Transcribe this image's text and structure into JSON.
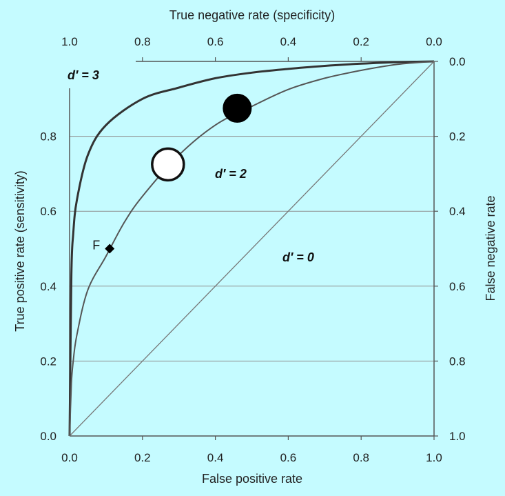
{
  "chart_data": {
    "type": "line",
    "background_color": "#c5fbff",
    "grid": "horizontal",
    "axes": {
      "bottom": {
        "label": "False positive rate",
        "ticks": [
          "0.0",
          "0.2",
          "0.4",
          "0.6",
          "0.8",
          "1.0"
        ],
        "range": [
          0,
          1
        ]
      },
      "left": {
        "label": "True positive rate (sensitivity)",
        "ticks": [
          "0.0",
          "0.2",
          "0.4",
          "0.6",
          "0.8"
        ],
        "range": [
          0,
          1
        ]
      },
      "top": {
        "label": "True negative rate (specificity)",
        "ticks": [
          "1.0",
          "0.8",
          "0.6",
          "0.4",
          "0.2",
          "0.0"
        ],
        "range": [
          1,
          0
        ]
      },
      "right": {
        "label": "False negative rate",
        "ticks": [
          "0.0",
          "0.2",
          "0.4",
          "0.6",
          "0.8",
          "1.0"
        ],
        "range": [
          0,
          1
        ]
      }
    },
    "series": [
      {
        "label": "d′ = 3",
        "dprime": 3,
        "color": "#333333",
        "points": [
          {
            "x": 0,
            "y": 0
          },
          {
            "x": 0.005,
            "y": 0.43
          },
          {
            "x": 0.01,
            "y": 0.54
          },
          {
            "x": 0.02,
            "y": 0.63
          },
          {
            "x": 0.05,
            "y": 0.75
          },
          {
            "x": 0.1,
            "y": 0.83
          },
          {
            "x": 0.2,
            "y": 0.9
          },
          {
            "x": 0.3,
            "y": 0.93
          },
          {
            "x": 0.4,
            "y": 0.955
          },
          {
            "x": 0.5,
            "y": 0.97
          },
          {
            "x": 0.6,
            "y": 0.98
          },
          {
            "x": 0.7,
            "y": 0.988
          },
          {
            "x": 0.8,
            "y": 0.994
          },
          {
            "x": 0.9,
            "y": 0.998
          },
          {
            "x": 1,
            "y": 1
          }
        ]
      },
      {
        "label": "d′ = 2",
        "dprime": 2,
        "color": "#555555",
        "points": [
          {
            "x": 0,
            "y": 0
          },
          {
            "x": 0.005,
            "y": 0.14
          },
          {
            "x": 0.01,
            "y": 0.2
          },
          {
            "x": 0.02,
            "y": 0.27
          },
          {
            "x": 0.05,
            "y": 0.39
          },
          {
            "x": 0.1,
            "y": 0.48
          },
          {
            "x": 0.15,
            "y": 0.57
          },
          {
            "x": 0.2,
            "y": 0.64
          },
          {
            "x": 0.3,
            "y": 0.75
          },
          {
            "x": 0.4,
            "y": 0.83
          },
          {
            "x": 0.5,
            "y": 0.88
          },
          {
            "x": 0.6,
            "y": 0.925
          },
          {
            "x": 0.7,
            "y": 0.955
          },
          {
            "x": 0.8,
            "y": 0.976
          },
          {
            "x": 0.9,
            "y": 0.992
          },
          {
            "x": 1,
            "y": 1
          }
        ]
      },
      {
        "label": "d′ = 0",
        "dprime": 0,
        "color": "#777777",
        "points": [
          {
            "x": 0,
            "y": 0
          },
          {
            "x": 1,
            "y": 1
          }
        ]
      }
    ],
    "markers": [
      {
        "shape": "circle-filled",
        "x": 0.46,
        "y": 0.875,
        "color": "#000000"
      },
      {
        "shape": "circle-open",
        "x": 0.27,
        "y": 0.725,
        "color": "#111111"
      },
      {
        "shape": "diamond",
        "x": 0.11,
        "y": 0.5,
        "label": "F",
        "color": "#000000"
      }
    ]
  }
}
